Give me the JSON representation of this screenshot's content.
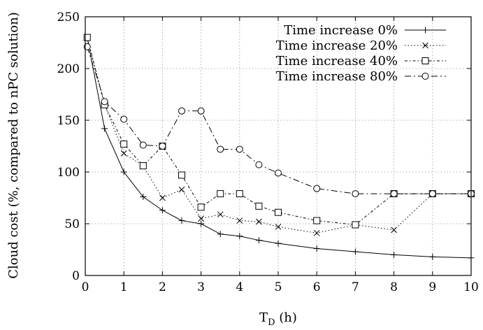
{
  "chart_data": {
    "type": "line",
    "title": "",
    "xlabel_main": "T",
    "xlabel_sub": "D",
    "xlabel_unit": " (h)",
    "ylabel": "Cloud cost (%, compared to nPC solution)",
    "xlim": [
      0,
      10
    ],
    "ylim": [
      0,
      250
    ],
    "xticks": [
      0,
      1,
      2,
      3,
      4,
      5,
      6,
      7,
      8,
      9,
      10
    ],
    "yticks": [
      0,
      50,
      100,
      150,
      200,
      250
    ],
    "grid": true,
    "legend_position": "top-right",
    "series": [
      {
        "name": "Time increase 0%",
        "marker": "plus",
        "dash": "solid",
        "x": [
          0.05,
          0.5,
          1,
          1.5,
          2,
          2.5,
          3,
          3.5,
          4,
          4.5,
          5,
          6,
          7,
          8,
          9,
          10
        ],
        "y": [
          230,
          142,
          100,
          76,
          63,
          53,
          50,
          40,
          38,
          34,
          31,
          26,
          23,
          20,
          18,
          17
        ]
      },
      {
        "name": "Time increase 20%",
        "marker": "cross",
        "dash": "dotted",
        "x": [
          0.05,
          0.5,
          1,
          1.5,
          2,
          2.5,
          3,
          3.5,
          4,
          4.5,
          5,
          6,
          7,
          8,
          9,
          10
        ],
        "y": [
          230,
          165,
          118,
          106,
          75,
          83,
          55,
          59,
          53,
          52,
          47,
          41,
          49,
          44,
          79,
          79
        ]
      },
      {
        "name": "Time increase 40%",
        "marker": "square",
        "dash": "dashdot",
        "x": [
          0.05,
          0.5,
          1,
          1.5,
          2,
          2.5,
          3,
          3.5,
          4,
          4.5,
          5,
          6,
          7,
          8,
          9,
          10
        ],
        "y": [
          230,
          165,
          127,
          106,
          125,
          97,
          66,
          79,
          79,
          67,
          61,
          53,
          49,
          79,
          79,
          79
        ]
      },
      {
        "name": "Time increase 80%",
        "marker": "circle",
        "dash": "longdashdot",
        "x": [
          0.05,
          0.5,
          1,
          1.5,
          2,
          2.5,
          3,
          3.5,
          4,
          4.5,
          5,
          6,
          7,
          8,
          9,
          10
        ],
        "y": [
          221,
          168,
          151,
          126,
          125,
          159,
          159,
          122,
          122,
          107,
          99,
          84,
          79,
          79,
          79,
          79
        ]
      }
    ]
  }
}
